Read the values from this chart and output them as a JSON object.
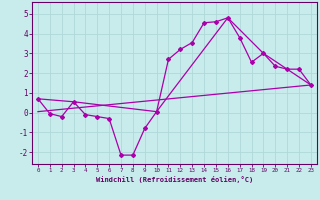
{
  "xlabel": "Windchill (Refroidissement éolien,°C)",
  "background_color": "#c8ecec",
  "grid_color": "#b0d8d8",
  "line_color": "#aa00aa",
  "xlim": [
    -0.5,
    23.5
  ],
  "ylim": [
    -2.6,
    5.6
  ],
  "yticks": [
    -2,
    -1,
    0,
    1,
    2,
    3,
    4,
    5
  ],
  "xticks": [
    0,
    1,
    2,
    3,
    4,
    5,
    6,
    7,
    8,
    9,
    10,
    11,
    12,
    13,
    14,
    15,
    16,
    17,
    18,
    19,
    20,
    21,
    22,
    23
  ],
  "line1_x": [
    0,
    1,
    2,
    3,
    4,
    5,
    6,
    7,
    8,
    9,
    10,
    11,
    12,
    13,
    14,
    15,
    16,
    17,
    18,
    19,
    20,
    21,
    22,
    23
  ],
  "line1_y": [
    0.7,
    -0.05,
    -0.2,
    0.55,
    -0.1,
    -0.2,
    -0.3,
    -2.15,
    -2.15,
    -0.8,
    0.05,
    2.7,
    3.2,
    3.55,
    4.55,
    4.6,
    4.8,
    3.8,
    2.55,
    3.0,
    2.35,
    2.2,
    2.2,
    1.4
  ],
  "line2_x": [
    0,
    3,
    10,
    11,
    16,
    19,
    23
  ],
  "line2_y": [
    0.7,
    0.55,
    0.05,
    0.85,
    4.8,
    3.0,
    1.4
  ],
  "line3_x": [
    0,
    23
  ],
  "line3_y": [
    0.05,
    1.4
  ]
}
